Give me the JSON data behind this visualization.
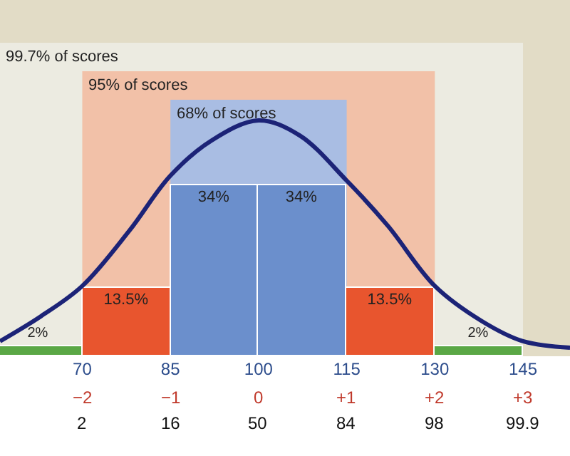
{
  "chart_data": {
    "type": "bar",
    "x": [
      62.5,
      77.5,
      92.5,
      107.5,
      122.5,
      137.5
    ],
    "values": [
      2,
      13.5,
      34,
      34,
      13.5,
      2
    ],
    "value_labels": [
      "2%",
      "13.5%",
      "34%",
      "34%",
      "13.5%",
      "2%"
    ],
    "colors": [
      "#5aa745",
      "#e8552e",
      "#6b8fcc",
      "#6b8fcc",
      "#e8552e",
      "#5aa745"
    ],
    "series": [
      {
        "type": "line",
        "color": "#1c2377",
        "x": [
          56,
          63,
          70,
          78,
          85,
          92,
          100,
          107,
          115,
          122,
          130,
          138,
          145,
          153
        ],
        "values": [
          3,
          8,
          14,
          25,
          36,
          43,
          47,
          44,
          35,
          26,
          14,
          7,
          3,
          1.7
        ]
      }
    ],
    "bands": [
      {
        "axis": "x",
        "from": 56,
        "to": 145,
        "label": "99.7% of scores",
        "color": "#ecebe1"
      },
      {
        "axis": "x",
        "from": 70,
        "to": 130,
        "label": "95% of scores",
        "color": "#f2c1a8"
      },
      {
        "axis": "x",
        "from": 85,
        "to": 115,
        "label": "68% of scores",
        "color": "#a9bde3"
      }
    ],
    "xlim": [
      56,
      153
    ],
    "xticks": [
      70,
      85,
      100,
      115,
      130,
      145
    ],
    "annotations": [
      "−2",
      "−1",
      "0",
      "+1",
      "+2",
      "+3",
      "2",
      "16",
      "50",
      "84",
      "98",
      "99.9"
    ],
    "ylim": [
      0,
      71
    ],
    "tick_labels": "x",
    "grid": false
  }
}
